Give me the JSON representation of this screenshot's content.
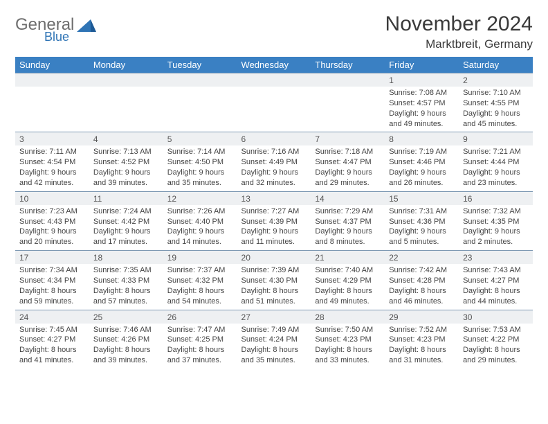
{
  "logo": {
    "general": "General",
    "blue": "Blue"
  },
  "title": "November 2024",
  "location": "Marktbreit, Germany",
  "colors": {
    "header_bg": "#3a80c3",
    "header_fg": "#ffffff",
    "daynum_bg": "#eef0f2",
    "border": "#7d98b3",
    "logo_gray": "#6d6d6d",
    "logo_blue": "#2f74b5"
  },
  "typography": {
    "title_fontsize": 30,
    "location_fontsize": 17,
    "header_fontsize": 13,
    "daynum_fontsize": 12,
    "detail_fontsize": 11
  },
  "weekdays": [
    "Sunday",
    "Monday",
    "Tuesday",
    "Wednesday",
    "Thursday",
    "Friday",
    "Saturday"
  ],
  "weeks": [
    [
      null,
      null,
      null,
      null,
      null,
      {
        "d": "1",
        "sr": "Sunrise: 7:08 AM",
        "ss": "Sunset: 4:57 PM",
        "dl1": "Daylight: 9 hours",
        "dl2": "and 49 minutes."
      },
      {
        "d": "2",
        "sr": "Sunrise: 7:10 AM",
        "ss": "Sunset: 4:55 PM",
        "dl1": "Daylight: 9 hours",
        "dl2": "and 45 minutes."
      }
    ],
    [
      {
        "d": "3",
        "sr": "Sunrise: 7:11 AM",
        "ss": "Sunset: 4:54 PM",
        "dl1": "Daylight: 9 hours",
        "dl2": "and 42 minutes."
      },
      {
        "d": "4",
        "sr": "Sunrise: 7:13 AM",
        "ss": "Sunset: 4:52 PM",
        "dl1": "Daylight: 9 hours",
        "dl2": "and 39 minutes."
      },
      {
        "d": "5",
        "sr": "Sunrise: 7:14 AM",
        "ss": "Sunset: 4:50 PM",
        "dl1": "Daylight: 9 hours",
        "dl2": "and 35 minutes."
      },
      {
        "d": "6",
        "sr": "Sunrise: 7:16 AM",
        "ss": "Sunset: 4:49 PM",
        "dl1": "Daylight: 9 hours",
        "dl2": "and 32 minutes."
      },
      {
        "d": "7",
        "sr": "Sunrise: 7:18 AM",
        "ss": "Sunset: 4:47 PM",
        "dl1": "Daylight: 9 hours",
        "dl2": "and 29 minutes."
      },
      {
        "d": "8",
        "sr": "Sunrise: 7:19 AM",
        "ss": "Sunset: 4:46 PM",
        "dl1": "Daylight: 9 hours",
        "dl2": "and 26 minutes."
      },
      {
        "d": "9",
        "sr": "Sunrise: 7:21 AM",
        "ss": "Sunset: 4:44 PM",
        "dl1": "Daylight: 9 hours",
        "dl2": "and 23 minutes."
      }
    ],
    [
      {
        "d": "10",
        "sr": "Sunrise: 7:23 AM",
        "ss": "Sunset: 4:43 PM",
        "dl1": "Daylight: 9 hours",
        "dl2": "and 20 minutes."
      },
      {
        "d": "11",
        "sr": "Sunrise: 7:24 AM",
        "ss": "Sunset: 4:42 PM",
        "dl1": "Daylight: 9 hours",
        "dl2": "and 17 minutes."
      },
      {
        "d": "12",
        "sr": "Sunrise: 7:26 AM",
        "ss": "Sunset: 4:40 PM",
        "dl1": "Daylight: 9 hours",
        "dl2": "and 14 minutes."
      },
      {
        "d": "13",
        "sr": "Sunrise: 7:27 AM",
        "ss": "Sunset: 4:39 PM",
        "dl1": "Daylight: 9 hours",
        "dl2": "and 11 minutes."
      },
      {
        "d": "14",
        "sr": "Sunrise: 7:29 AM",
        "ss": "Sunset: 4:37 PM",
        "dl1": "Daylight: 9 hours",
        "dl2": "and 8 minutes."
      },
      {
        "d": "15",
        "sr": "Sunrise: 7:31 AM",
        "ss": "Sunset: 4:36 PM",
        "dl1": "Daylight: 9 hours",
        "dl2": "and 5 minutes."
      },
      {
        "d": "16",
        "sr": "Sunrise: 7:32 AM",
        "ss": "Sunset: 4:35 PM",
        "dl1": "Daylight: 9 hours",
        "dl2": "and 2 minutes."
      }
    ],
    [
      {
        "d": "17",
        "sr": "Sunrise: 7:34 AM",
        "ss": "Sunset: 4:34 PM",
        "dl1": "Daylight: 8 hours",
        "dl2": "and 59 minutes."
      },
      {
        "d": "18",
        "sr": "Sunrise: 7:35 AM",
        "ss": "Sunset: 4:33 PM",
        "dl1": "Daylight: 8 hours",
        "dl2": "and 57 minutes."
      },
      {
        "d": "19",
        "sr": "Sunrise: 7:37 AM",
        "ss": "Sunset: 4:32 PM",
        "dl1": "Daylight: 8 hours",
        "dl2": "and 54 minutes."
      },
      {
        "d": "20",
        "sr": "Sunrise: 7:39 AM",
        "ss": "Sunset: 4:30 PM",
        "dl1": "Daylight: 8 hours",
        "dl2": "and 51 minutes."
      },
      {
        "d": "21",
        "sr": "Sunrise: 7:40 AM",
        "ss": "Sunset: 4:29 PM",
        "dl1": "Daylight: 8 hours",
        "dl2": "and 49 minutes."
      },
      {
        "d": "22",
        "sr": "Sunrise: 7:42 AM",
        "ss": "Sunset: 4:28 PM",
        "dl1": "Daylight: 8 hours",
        "dl2": "and 46 minutes."
      },
      {
        "d": "23",
        "sr": "Sunrise: 7:43 AM",
        "ss": "Sunset: 4:27 PM",
        "dl1": "Daylight: 8 hours",
        "dl2": "and 44 minutes."
      }
    ],
    [
      {
        "d": "24",
        "sr": "Sunrise: 7:45 AM",
        "ss": "Sunset: 4:27 PM",
        "dl1": "Daylight: 8 hours",
        "dl2": "and 41 minutes."
      },
      {
        "d": "25",
        "sr": "Sunrise: 7:46 AM",
        "ss": "Sunset: 4:26 PM",
        "dl1": "Daylight: 8 hours",
        "dl2": "and 39 minutes."
      },
      {
        "d": "26",
        "sr": "Sunrise: 7:47 AM",
        "ss": "Sunset: 4:25 PM",
        "dl1": "Daylight: 8 hours",
        "dl2": "and 37 minutes."
      },
      {
        "d": "27",
        "sr": "Sunrise: 7:49 AM",
        "ss": "Sunset: 4:24 PM",
        "dl1": "Daylight: 8 hours",
        "dl2": "and 35 minutes."
      },
      {
        "d": "28",
        "sr": "Sunrise: 7:50 AM",
        "ss": "Sunset: 4:23 PM",
        "dl1": "Daylight: 8 hours",
        "dl2": "and 33 minutes."
      },
      {
        "d": "29",
        "sr": "Sunrise: 7:52 AM",
        "ss": "Sunset: 4:23 PM",
        "dl1": "Daylight: 8 hours",
        "dl2": "and 31 minutes."
      },
      {
        "d": "30",
        "sr": "Sunrise: 7:53 AM",
        "ss": "Sunset: 4:22 PM",
        "dl1": "Daylight: 8 hours",
        "dl2": "and 29 minutes."
      }
    ]
  ]
}
